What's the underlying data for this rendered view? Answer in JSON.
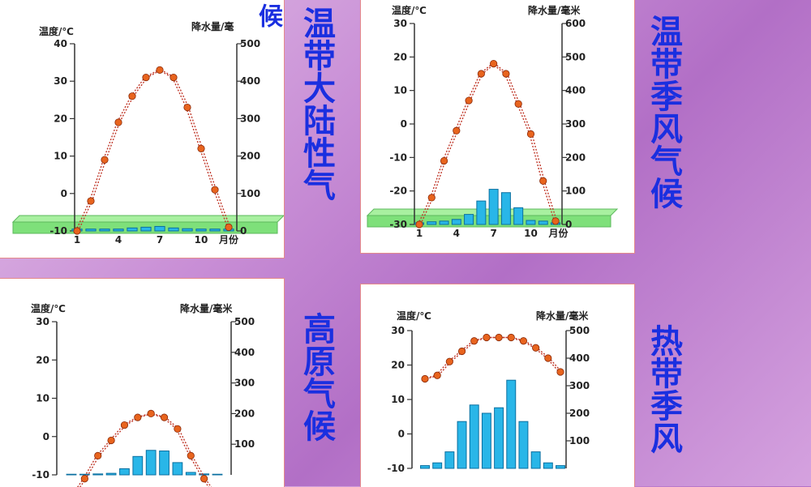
{
  "titles": {
    "continental": "温带大陆性气",
    "continental_tail": "候",
    "monsoon": "温带季风气候",
    "plateau": "高原气候",
    "tropical": "热带季风"
  },
  "colors": {
    "temp_line": "#c0392b",
    "temp_point": "#e8641e",
    "bar_fill": "#29b6e8",
    "ground": "#7ee07a",
    "title": "#1a2fe0"
  },
  "chart_data": [
    {
      "name": "continental",
      "type": "line+bar",
      "ylabel_left": "温度/℃",
      "ylabel_right": "降水量/毫",
      "temp_ylim": [
        -10,
        40
      ],
      "temp_ticks": [
        "40",
        "30",
        "20",
        "10",
        "0",
        "-10"
      ],
      "precip_ylim": [
        0,
        500
      ],
      "precip_ticks": [
        "500",
        "400",
        "300",
        "200",
        "100",
        "0"
      ],
      "x_ticks": [
        "1",
        "4",
        "7",
        "10"
      ],
      "x_suffix": "月份",
      "temperature": [
        -10,
        -2,
        9,
        19,
        26,
        31,
        33,
        31,
        23,
        12,
        1,
        -9
      ],
      "precipitation": [
        5,
        5,
        5,
        5,
        8,
        10,
        12,
        8,
        6,
        5,
        5,
        5
      ]
    },
    {
      "name": "monsoon",
      "type": "line+bar",
      "ylabel_left": "温度/℃",
      "ylabel_right": "降水量/毫米",
      "temp_ylim": [
        -30,
        30
      ],
      "temp_ticks": [
        "30",
        "20",
        "10",
        "0",
        "-10",
        "-20",
        "-30"
      ],
      "precip_ylim": [
        0,
        600
      ],
      "precip_ticks": [
        "600",
        "500",
        "400",
        "300",
        "200",
        "100",
        "0"
      ],
      "x_ticks": [
        "1",
        "4",
        "7",
        "10"
      ],
      "x_suffix": "月份",
      "temperature": [
        -30,
        -22,
        -11,
        -2,
        7,
        15,
        18,
        15,
        6,
        -3,
        -17,
        -29
      ],
      "precipitation": [
        5,
        8,
        10,
        15,
        30,
        70,
        105,
        95,
        50,
        12,
        10,
        5
      ]
    },
    {
      "name": "plateau",
      "type": "line+bar",
      "ylabel_left": "温度/℃",
      "ylabel_right": "降水量/毫米",
      "temp_ylim": [
        -10,
        30
      ],
      "temp_ticks": [
        "30",
        "20",
        "10",
        "0",
        "-10"
      ],
      "precip_ylim": [
        0,
        500
      ],
      "precip_ticks": [
        "500",
        "400",
        "300",
        "200",
        "100"
      ],
      "temperature": [
        -16,
        -11,
        -5,
        -1,
        3,
        5,
        6,
        5,
        2,
        -5,
        -11,
        -16
      ],
      "precipitation": [
        2,
        2,
        3,
        5,
        20,
        60,
        80,
        78,
        40,
        8,
        3,
        2
      ]
    },
    {
      "name": "tropical",
      "type": "line+bar",
      "ylabel_left": "温度/℃",
      "ylabel_right": "降水量/毫米",
      "temp_ylim": [
        -10,
        30
      ],
      "temp_ticks": [
        "30",
        "20",
        "10",
        "0",
        "-10"
      ],
      "precip_ylim": [
        0,
        500
      ],
      "precip_ticks": [
        "500",
        "400",
        "300",
        "200",
        "100"
      ],
      "temperature": [
        16,
        17,
        21,
        24,
        27,
        28,
        28,
        28,
        27,
        25,
        22,
        18
      ],
      "precipitation": [
        10,
        20,
        60,
        170,
        230,
        200,
        220,
        320,
        170,
        60,
        20,
        10
      ]
    }
  ]
}
